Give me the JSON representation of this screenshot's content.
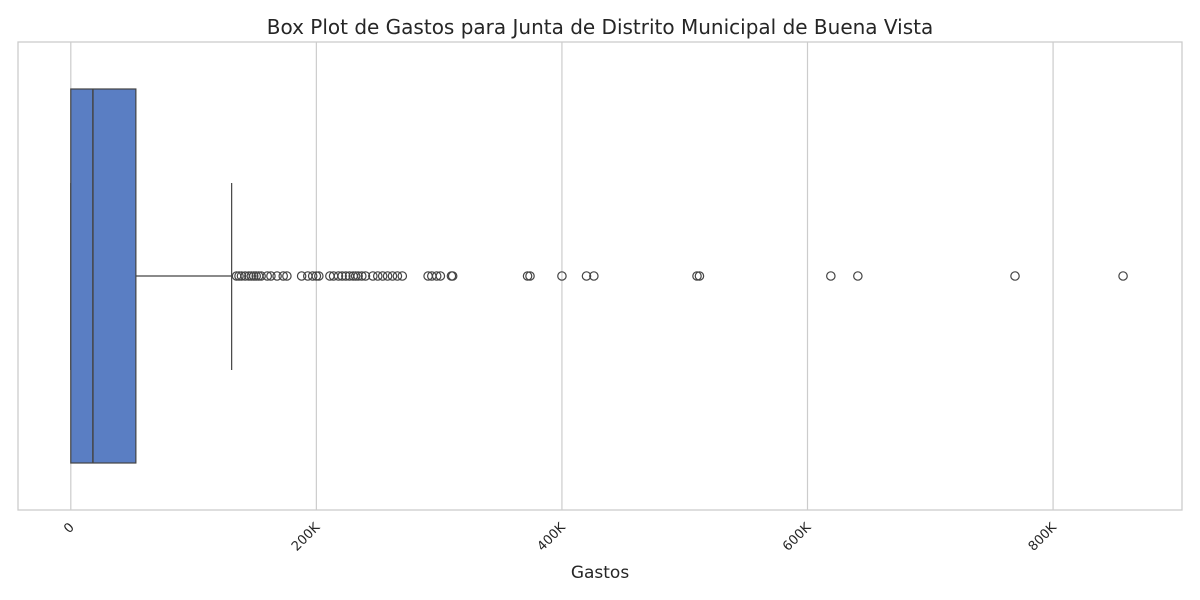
{
  "chart_data": {
    "type": "box",
    "orientation": "horizontal",
    "title": "Box Plot de Gastos para Junta de Distrito Municipal de Buena Vista",
    "xlabel": "Gastos",
    "ylabel": "",
    "xlim": [
      -43000,
      905000
    ],
    "grid": true,
    "ticks": [
      {
        "value": 0,
        "label": "0"
      },
      {
        "value": 200000,
        "label": "200K"
      },
      {
        "value": 400000,
        "label": "400K"
      },
      {
        "value": 600000,
        "label": "600K"
      },
      {
        "value": 800000,
        "label": "800K"
      }
    ],
    "box": {
      "min": 0,
      "q1": 0,
      "median": 18000,
      "q3": 53000,
      "whisker_high": 131000,
      "outliers": [
        135000,
        137000,
        139000,
        142000,
        145000,
        147000,
        149000,
        151000,
        153000,
        155000,
        160000,
        163000,
        168000,
        173000,
        176000,
        188000,
        193000,
        197000,
        200000,
        202000,
        211000,
        214000,
        218000,
        221000,
        224000,
        227000,
        230000,
        232000,
        234000,
        237000,
        240000,
        246000,
        250000,
        254000,
        258000,
        262000,
        266000,
        270000,
        291000,
        294000,
        298000,
        301000,
        310000,
        311000,
        372000,
        374000,
        400000,
        420000,
        426000,
        510000,
        512000,
        619000,
        641000,
        769000,
        857000
      ]
    },
    "colors": {
      "box": "#5a7ec3",
      "line": "#444444",
      "grid": "#cccccc",
      "frame": "#cccccc"
    }
  }
}
